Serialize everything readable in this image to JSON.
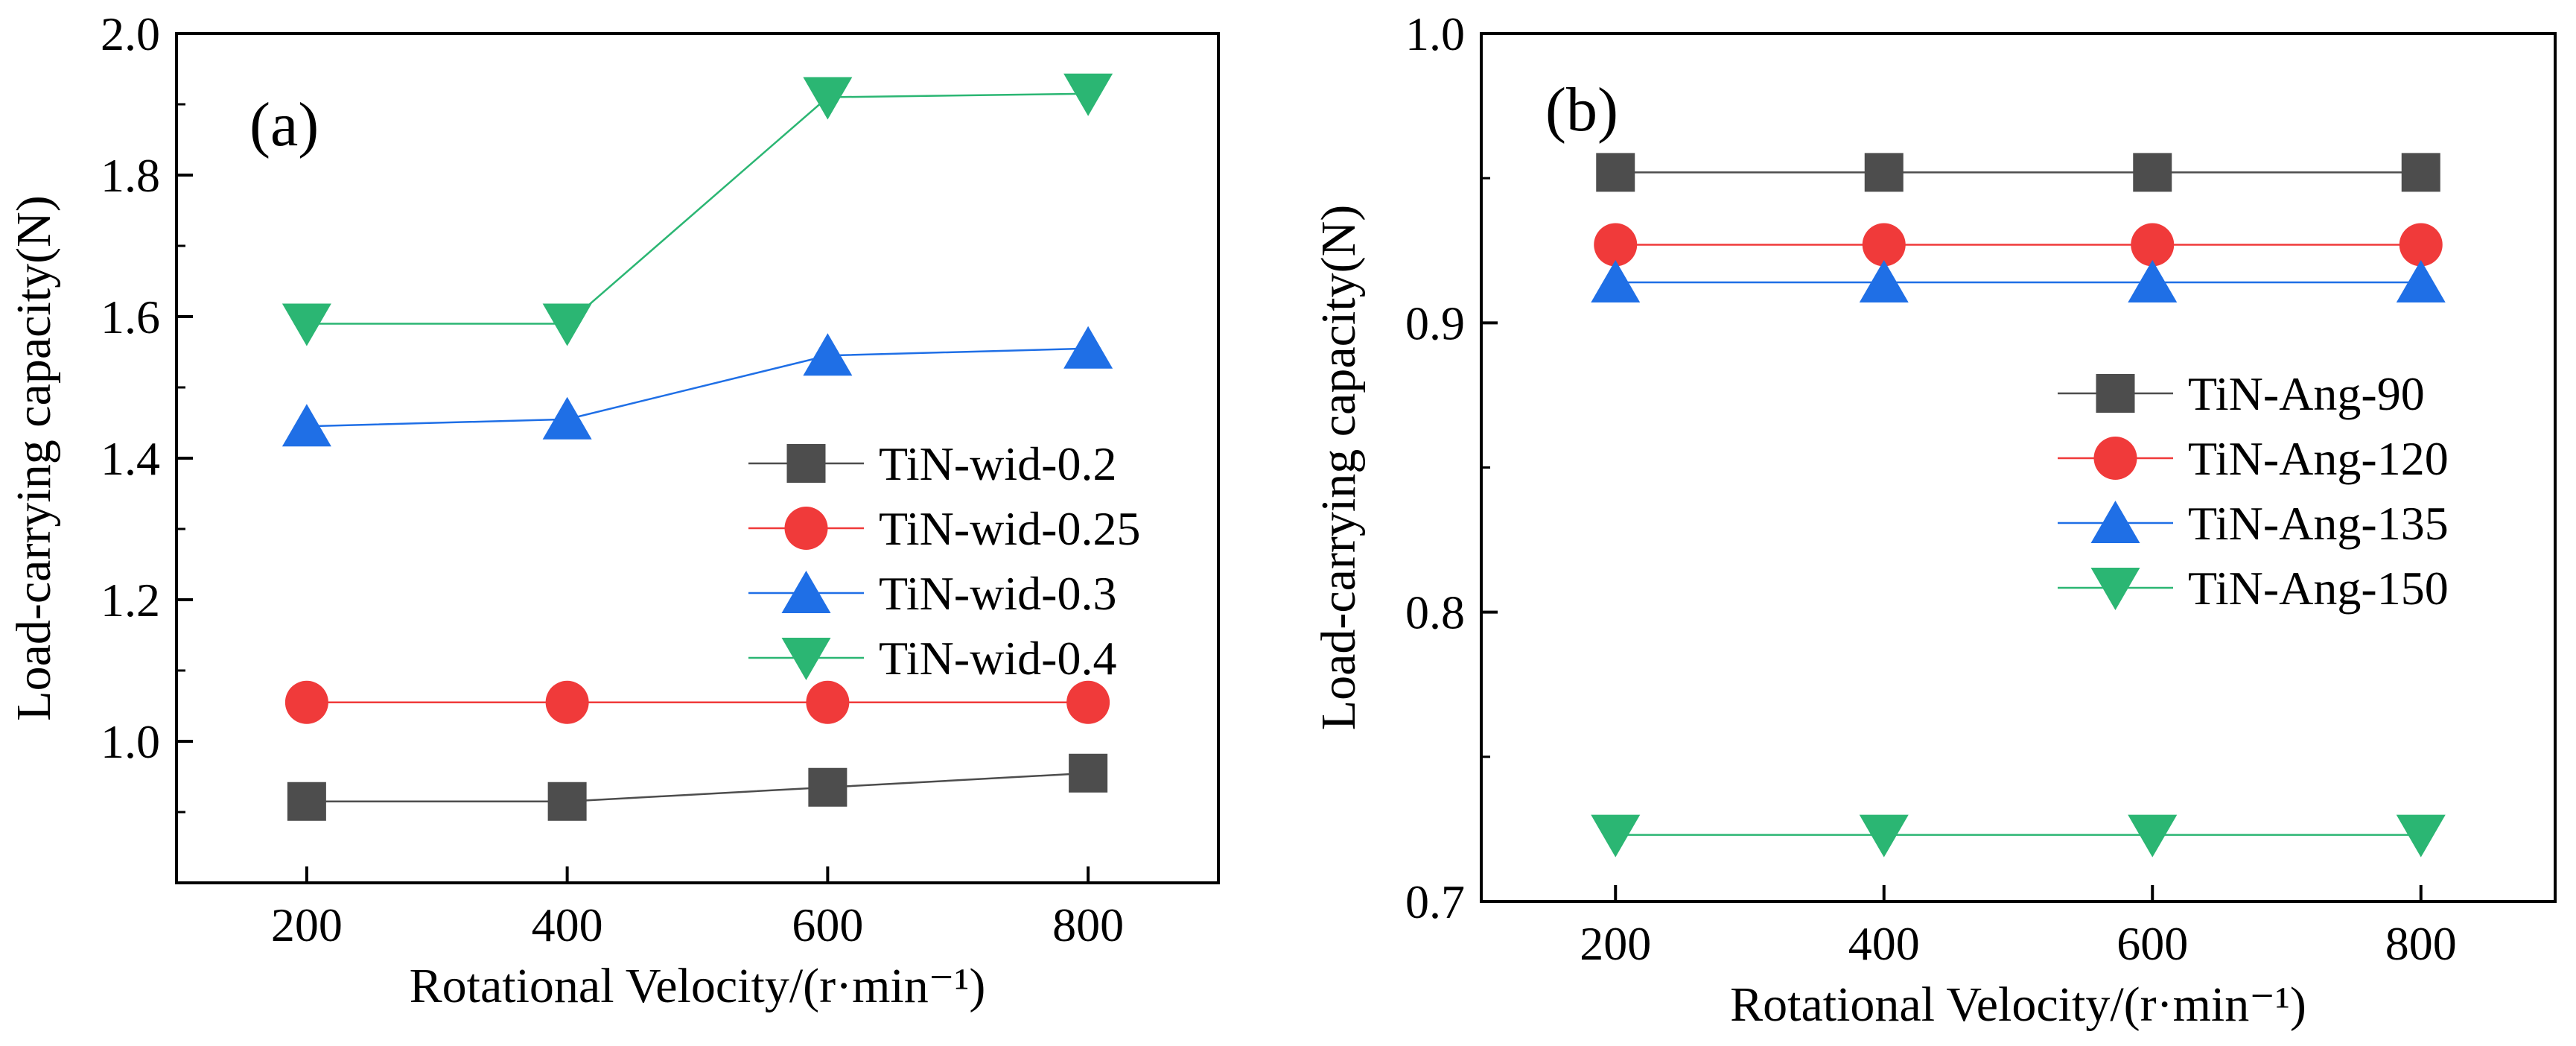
{
  "chart_data": [
    {
      "type": "line",
      "panel_label": "(a)",
      "xlabel": "Rotational Velocity/(r·min⁻¹)",
      "ylabel": "Load-carrying capacity(N)",
      "x": [
        200,
        400,
        600,
        800
      ],
      "xticks": [
        "200",
        "400",
        "600",
        "800"
      ],
      "xlim": [
        100,
        900
      ],
      "ylim": [
        0.8,
        2.0
      ],
      "yticks": [
        "1.0",
        "1.2",
        "1.4",
        "1.6",
        "1.8",
        "2.0"
      ],
      "ytick_values": [
        1.0,
        1.2,
        1.4,
        1.6,
        1.8,
        2.0
      ],
      "legend_position": "middle-right",
      "series": [
        {
          "name": "TiN-wid-0.2",
          "marker": "square",
          "color": "#4d4d4d",
          "values": [
            0.915,
            0.915,
            0.935,
            0.955
          ]
        },
        {
          "name": "TiN-wid-0.25",
          "marker": "circle",
          "color": "#f03a3a",
          "values": [
            1.055,
            1.055,
            1.055,
            1.055
          ]
        },
        {
          "name": "TiN-wid-0.3",
          "marker": "triangle-up",
          "color": "#1f6fe6",
          "values": [
            1.445,
            1.455,
            1.545,
            1.555
          ]
        },
        {
          "name": "TiN-wid-0.4",
          "marker": "triangle-down",
          "color": "#2bb673",
          "values": [
            1.59,
            1.59,
            1.91,
            1.915
          ]
        }
      ]
    },
    {
      "type": "line",
      "panel_label": "(b)",
      "xlabel": "Rotational Velocity/(r·min⁻¹)",
      "ylabel": "Load-carrying capacity(N)",
      "x": [
        200,
        400,
        600,
        800
      ],
      "xticks": [
        "200",
        "400",
        "600",
        "800"
      ],
      "xlim": [
        100,
        900
      ],
      "ylim": [
        0.7,
        1.0
      ],
      "yticks": [
        "0.7",
        "0.8",
        "0.9",
        "1.0"
      ],
      "ytick_values": [
        0.7,
        0.8,
        0.9,
        1.0
      ],
      "legend_position": "middle-right",
      "series": [
        {
          "name": "TiN-Ang-90",
          "marker": "square",
          "color": "#4d4d4d",
          "values": [
            0.952,
            0.952,
            0.952,
            0.952
          ]
        },
        {
          "name": "TiN-Ang-120",
          "marker": "circle",
          "color": "#f03a3a",
          "values": [
            0.927,
            0.927,
            0.927,
            0.927
          ]
        },
        {
          "name": "TiN-Ang-135",
          "marker": "triangle-up",
          "color": "#1f6fe6",
          "values": [
            0.914,
            0.914,
            0.914,
            0.914
          ]
        },
        {
          "name": "TiN-Ang-150",
          "marker": "triangle-down",
          "color": "#2bb673",
          "values": [
            0.723,
            0.723,
            0.723,
            0.723
          ]
        }
      ]
    }
  ]
}
